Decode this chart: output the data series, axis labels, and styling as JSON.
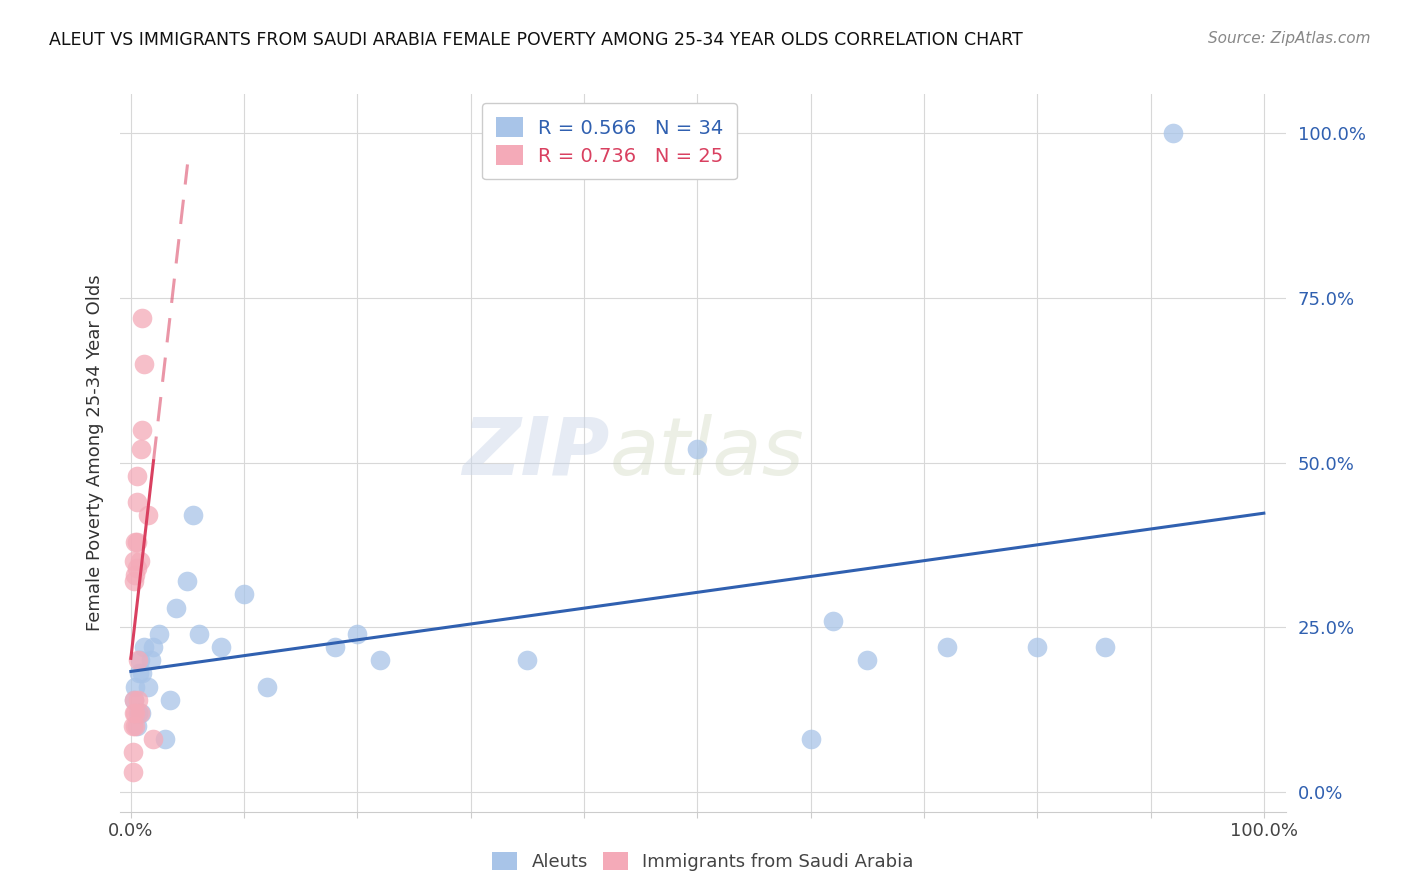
{
  "title": "ALEUT VS IMMIGRANTS FROM SAUDI ARABIA FEMALE POVERTY AMONG 25-34 YEAR OLDS CORRELATION CHART",
  "source": "Source: ZipAtlas.com",
  "ylabel": "Female Poverty Among 25-34 Year Olds",
  "aleut_R": "0.566",
  "aleut_N": "34",
  "saudi_R": "0.736",
  "saudi_N": "25",
  "legend_label_blue": "Aleuts",
  "legend_label_pink": "Immigrants from Saudi Arabia",
  "blue_color": "#a8c4e8",
  "pink_color": "#f4aab8",
  "trend_blue": "#3060b0",
  "trend_pink": "#d94060",
  "background": "#ffffff",
  "grid_color": "#d8d8d8",
  "watermark_left": "ZIP",
  "watermark_right": "atlas",
  "aleut_x": [
    0.003,
    0.004,
    0.005,
    0.006,
    0.007,
    0.008,
    0.009,
    0.01,
    0.012,
    0.015,
    0.018,
    0.02,
    0.025,
    0.03,
    0.035,
    0.04,
    0.05,
    0.055,
    0.06,
    0.08,
    0.1,
    0.12,
    0.18,
    0.2,
    0.22,
    0.35,
    0.5,
    0.6,
    0.62,
    0.65,
    0.72,
    0.8,
    0.86,
    0.92
  ],
  "aleut_y": [
    0.14,
    0.16,
    0.1,
    0.12,
    0.18,
    0.2,
    0.12,
    0.18,
    0.22,
    0.16,
    0.2,
    0.22,
    0.24,
    0.08,
    0.14,
    0.28,
    0.32,
    0.42,
    0.24,
    0.22,
    0.3,
    0.16,
    0.22,
    0.24,
    0.2,
    0.2,
    0.52,
    0.08,
    0.26,
    0.2,
    0.22,
    0.22,
    0.22,
    1.0
  ],
  "saudi_x": [
    0.002,
    0.002,
    0.002,
    0.003,
    0.003,
    0.003,
    0.003,
    0.004,
    0.004,
    0.004,
    0.004,
    0.005,
    0.005,
    0.005,
    0.005,
    0.006,
    0.006,
    0.008,
    0.008,
    0.009,
    0.01,
    0.01,
    0.012,
    0.015,
    0.02
  ],
  "saudi_y": [
    0.03,
    0.06,
    0.1,
    0.12,
    0.14,
    0.32,
    0.35,
    0.1,
    0.12,
    0.33,
    0.38,
    0.34,
    0.38,
    0.44,
    0.48,
    0.14,
    0.2,
    0.12,
    0.35,
    0.52,
    0.55,
    0.72,
    0.65,
    0.42,
    0.08
  ],
  "xlim": [
    0.0,
    1.0
  ],
  "ylim": [
    0.0,
    1.0
  ],
  "x_ticks": [
    0.0,
    0.2,
    0.4,
    0.6,
    0.8,
    1.0
  ],
  "y_ticks": [
    0.0,
    0.25,
    0.5,
    0.75,
    1.0
  ],
  "x_tick_labels_show": [
    "0.0%",
    "",
    "",
    "",
    "",
    "100.0%"
  ],
  "y_tick_labels_show": [
    "0.0%",
    "25.0%",
    "50.0%",
    "75.0%",
    "100.0%"
  ]
}
